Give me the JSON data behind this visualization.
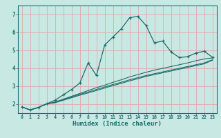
{
  "xlabel": "Humidex (Indice chaleur)",
  "bg_color": "#c8e8e4",
  "grid_color": "#e0a8a8",
  "line_color": "#1a6e6a",
  "xlim": [
    -0.5,
    23.5
  ],
  "ylim": [
    1.5,
    7.5
  ],
  "xticks": [
    0,
    1,
    2,
    3,
    4,
    5,
    6,
    7,
    8,
    9,
    10,
    11,
    12,
    13,
    14,
    15,
    16,
    17,
    18,
    19,
    20,
    21,
    22,
    23
  ],
  "yticks": [
    2,
    3,
    4,
    5,
    6,
    7
  ],
  "series_marked": {
    "x": [
      0,
      1,
      2,
      3,
      4,
      5,
      6,
      7,
      8,
      9,
      10,
      11,
      12,
      13,
      14,
      15,
      16,
      17,
      18,
      19,
      20,
      21,
      22,
      23
    ],
    "y": [
      1.85,
      1.68,
      1.82,
      2.02,
      2.22,
      2.52,
      2.82,
      3.18,
      4.3,
      3.6,
      5.3,
      5.75,
      6.2,
      6.82,
      6.9,
      6.38,
      5.42,
      5.52,
      4.92,
      4.6,
      4.65,
      4.85,
      4.95,
      4.62
    ]
  },
  "series_line1": {
    "x": [
      0,
      1,
      2,
      3,
      4,
      5,
      6,
      7,
      8,
      9,
      10,
      11,
      12,
      13,
      14,
      15,
      16,
      17,
      18,
      19,
      20,
      21,
      22,
      23
    ],
    "y": [
      1.85,
      1.68,
      1.82,
      2.02,
      2.12,
      2.28,
      2.44,
      2.6,
      2.76,
      2.92,
      3.06,
      3.22,
      3.36,
      3.52,
      3.65,
      3.78,
      3.9,
      4.0,
      4.1,
      4.2,
      4.3,
      4.42,
      4.52,
      4.58
    ]
  },
  "series_line2": {
    "x": [
      0,
      1,
      2,
      3,
      4,
      5,
      6,
      7,
      8,
      9,
      10,
      11,
      12,
      13,
      14,
      15,
      16,
      17,
      18,
      19,
      20,
      21,
      22,
      23
    ],
    "y": [
      1.85,
      1.68,
      1.82,
      2.02,
      2.1,
      2.25,
      2.4,
      2.55,
      2.68,
      2.82,
      2.96,
      3.1,
      3.22,
      3.36,
      3.48,
      3.6,
      3.7,
      3.8,
      3.9,
      4.0,
      4.1,
      4.2,
      4.3,
      4.48
    ]
  },
  "series_line3": {
    "x": [
      0,
      1,
      2,
      3,
      4,
      5,
      6,
      7,
      8,
      9,
      10,
      11,
      12,
      13,
      14,
      15,
      16,
      17,
      18,
      19,
      20,
      21,
      22,
      23
    ],
    "y": [
      1.85,
      1.68,
      1.82,
      2.02,
      2.08,
      2.22,
      2.36,
      2.5,
      2.63,
      2.76,
      2.9,
      3.04,
      3.16,
      3.3,
      3.42,
      3.55,
      3.65,
      3.75,
      3.85,
      3.95,
      4.05,
      4.15,
      4.25,
      4.45
    ]
  }
}
